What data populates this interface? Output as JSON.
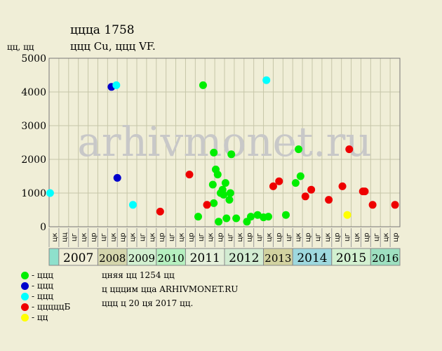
{
  "title_line1": "ццца 1758",
  "title_line2": "ццц Cu, ццц VF.",
  "y_unit": "цц, цц",
  "watermark": "arhivmonet.ru",
  "notes": [
    "цняя цц 1254 цц",
    "ц цццим ццa ARHIVMONET.RU",
    "ццц ц 20 ця 2017 цц."
  ],
  "legend": [
    {
      "label": "- ццц",
      "color": "#00ee00"
    },
    {
      "label": "- ццц",
      "color": "#0000cc"
    },
    {
      "label": "- ццц",
      "color": "#00ffff"
    },
    {
      "label": "- цццццБ",
      "color": "#ee0000"
    },
    {
      "label": "- цц",
      "color": "#ffff00"
    }
  ],
  "chart_data": {
    "type": "scatter",
    "ylim": [
      0,
      5000
    ],
    "y_ticks": [
      "0",
      "1000",
      "2000",
      "3000",
      "4000",
      "5000"
    ],
    "grid": true,
    "quarter_labels": [
      "цк",
      "цц",
      "цг",
      "цк",
      "цр",
      "цг",
      "цк",
      "цр",
      "цк",
      "цг",
      "цк",
      "цр",
      "цг",
      "цк",
      "цр",
      "цг",
      "цк",
      "цр",
      "цг",
      "цк",
      "цр",
      "цг",
      "цк",
      "цр",
      "цг",
      "цк",
      "цр",
      "цг",
      "цк",
      "цр",
      "цг",
      "цк",
      "цр",
      "цг",
      "цк",
      "цр"
    ],
    "years": [
      {
        "label": "",
        "span": 1,
        "color": "#8ee0cc"
      },
      {
        "label": "2007",
        "span": 4,
        "color": "#f0eed7"
      },
      {
        "label": "2008",
        "span": 3,
        "color": "#d5d6ad"
      },
      {
        "label": "2009",
        "span": 3,
        "color": "#d2f0d0"
      },
      {
        "label": "2010",
        "span": 3,
        "color": "#b6f0c0"
      },
      {
        "label": "2011",
        "span": 4,
        "color": "#e4f0da"
      },
      {
        "label": "2012",
        "span": 4,
        "color": "#d2ecd2"
      },
      {
        "label": "2013",
        "span": 3,
        "color": "#d2d2a0"
      },
      {
        "label": "2014",
        "span": 4,
        "color": "#9ed8de"
      },
      {
        "label": "2015",
        "span": 4,
        "color": "#d2f0d0"
      },
      {
        "label": "2016",
        "span": 3,
        "color": "#9ee0c0"
      }
    ],
    "series": [
      {
        "color": "#00ee00",
        "points": [
          [
            15.8,
            4200
          ],
          [
            16.9,
            2200
          ],
          [
            17.1,
            1700
          ],
          [
            17.3,
            1550
          ],
          [
            16.8,
            1250
          ],
          [
            16.9,
            700
          ],
          [
            17.6,
            1000
          ],
          [
            17.8,
            1100
          ],
          [
            18.1,
            1300
          ],
          [
            17.9,
            950
          ],
          [
            18.6,
            1000
          ],
          [
            18.5,
            800
          ],
          [
            18.7,
            2150
          ],
          [
            17.4,
            150
          ],
          [
            18.2,
            250
          ],
          [
            19.2,
            250
          ],
          [
            15.3,
            300
          ],
          [
            20.3,
            150
          ],
          [
            20.7,
            300
          ],
          [
            21.4,
            350
          ],
          [
            22.0,
            280
          ],
          [
            22.5,
            300
          ],
          [
            24.3,
            350
          ],
          [
            25.3,
            1300
          ],
          [
            25.6,
            2300
          ],
          [
            25.8,
            1500
          ]
        ]
      },
      {
        "color": "#0000cc",
        "points": [
          [
            6.4,
            4150
          ],
          [
            7.0,
            1450
          ]
        ]
      },
      {
        "color": "#00ffff",
        "points": [
          [
            0.1,
            1000
          ],
          [
            6.9,
            4200
          ],
          [
            8.6,
            650
          ],
          [
            22.3,
            4350
          ]
        ]
      },
      {
        "color": "#ee0000",
        "points": [
          [
            11.4,
            450
          ],
          [
            14.4,
            1550
          ],
          [
            16.2,
            650
          ],
          [
            23.0,
            1200
          ],
          [
            23.6,
            1350
          ],
          [
            26.3,
            900
          ],
          [
            26.9,
            1100
          ],
          [
            28.7,
            800
          ],
          [
            30.1,
            1200
          ],
          [
            30.8,
            2300
          ],
          [
            32.2,
            1050
          ],
          [
            32.4,
            1050
          ],
          [
            33.2,
            650
          ],
          [
            35.5,
            650
          ]
        ]
      },
      {
        "color": "#ffff00",
        "points": [
          [
            30.6,
            350
          ]
        ]
      }
    ]
  }
}
